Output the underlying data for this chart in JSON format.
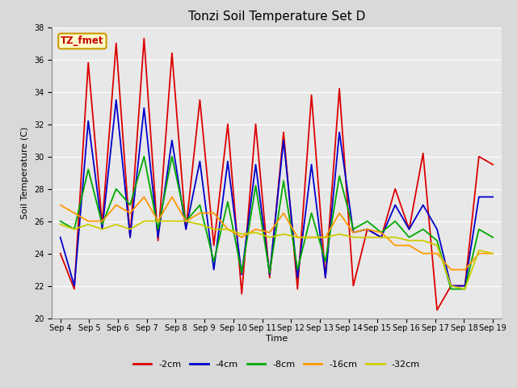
{
  "title": "Tonzi Soil Temperature Set D",
  "xlabel": "Time",
  "ylabel": "Soil Temperature (C)",
  "annotation": "TZ_fmet",
  "annotation_color": "#cc0000",
  "annotation_bg": "#ffffcc",
  "annotation_border": "#cc9900",
  "ylim": [
    20,
    38
  ],
  "yticks": [
    20,
    22,
    24,
    26,
    28,
    30,
    32,
    34,
    36,
    38
  ],
  "xtick_labels": [
    "Sep 4",
    "Sep 5",
    "Sep 6",
    "Sep 7",
    "Sep 8",
    "Sep 9",
    "Sep 10",
    "Sep 11",
    "Sep 12",
    "Sep 13",
    "Sep 14",
    "Sep 15",
    "Sep 16",
    "Sep 17",
    "Sep 18",
    "Sep 19"
  ],
  "series": {
    "-2cm": {
      "color": "#dd0000",
      "data": [
        24.0,
        21.8,
        35.8,
        25.8,
        37.0,
        25.0,
        37.3,
        24.8,
        36.4,
        25.5,
        33.5,
        24.5,
        32.0,
        21.5,
        32.0,
        22.5,
        31.5,
        21.8,
        33.8,
        22.5,
        34.2,
        22.0,
        25.5,
        25.0,
        28.0,
        25.5,
        30.2,
        20.5,
        22.0,
        22.0,
        30.0,
        29.5
      ]
    },
    "-4cm": {
      "color": "#0000cc",
      "data": [
        25.0,
        22.0,
        32.2,
        25.5,
        33.5,
        25.0,
        33.0,
        25.0,
        31.0,
        25.5,
        29.7,
        23.0,
        29.7,
        22.7,
        29.5,
        22.7,
        31.0,
        22.5,
        29.5,
        22.5,
        31.5,
        25.3,
        25.5,
        25.0,
        27.0,
        25.5,
        27.0,
        25.5,
        22.0,
        22.0,
        27.5,
        27.5
      ]
    },
    "-8cm": {
      "color": "#00aa00",
      "data": [
        26.0,
        25.5,
        29.2,
        25.8,
        28.0,
        27.0,
        30.0,
        25.5,
        30.0,
        26.0,
        27.0,
        23.5,
        27.2,
        22.8,
        28.2,
        22.8,
        28.5,
        23.0,
        26.5,
        23.5,
        28.8,
        25.5,
        26.0,
        25.3,
        26.0,
        25.0,
        25.5,
        24.8,
        21.8,
        21.8,
        25.5,
        25.0
      ]
    },
    "-16cm": {
      "color": "#ff9900",
      "data": [
        27.0,
        26.5,
        26.0,
        26.0,
        27.0,
        26.5,
        27.5,
        26.0,
        27.5,
        26.0,
        26.5,
        26.5,
        25.5,
        25.0,
        25.5,
        25.3,
        26.5,
        25.0,
        25.0,
        25.0,
        26.5,
        25.3,
        25.5,
        25.3,
        24.5,
        24.5,
        24.0,
        24.0,
        23.0,
        23.0,
        24.0,
        24.0
      ]
    },
    "-32cm": {
      "color": "#cccc00",
      "data": [
        25.8,
        25.5,
        25.8,
        25.5,
        25.8,
        25.5,
        26.0,
        26.0,
        26.0,
        26.0,
        25.8,
        25.5,
        25.5,
        25.2,
        25.3,
        25.0,
        25.2,
        25.0,
        25.0,
        25.0,
        25.2,
        25.0,
        25.0,
        25.0,
        25.0,
        24.8,
        24.8,
        24.5,
        22.0,
        21.8,
        24.2,
        24.0
      ]
    }
  },
  "bg_color": "#d9d9d9",
  "plot_bg": "#e8e8e8",
  "grid_color": "#ffffff",
  "title_fontsize": 11,
  "axis_label_fontsize": 8,
  "tick_fontsize": 7,
  "legend_fontsize": 8,
  "linewidth": 1.3
}
